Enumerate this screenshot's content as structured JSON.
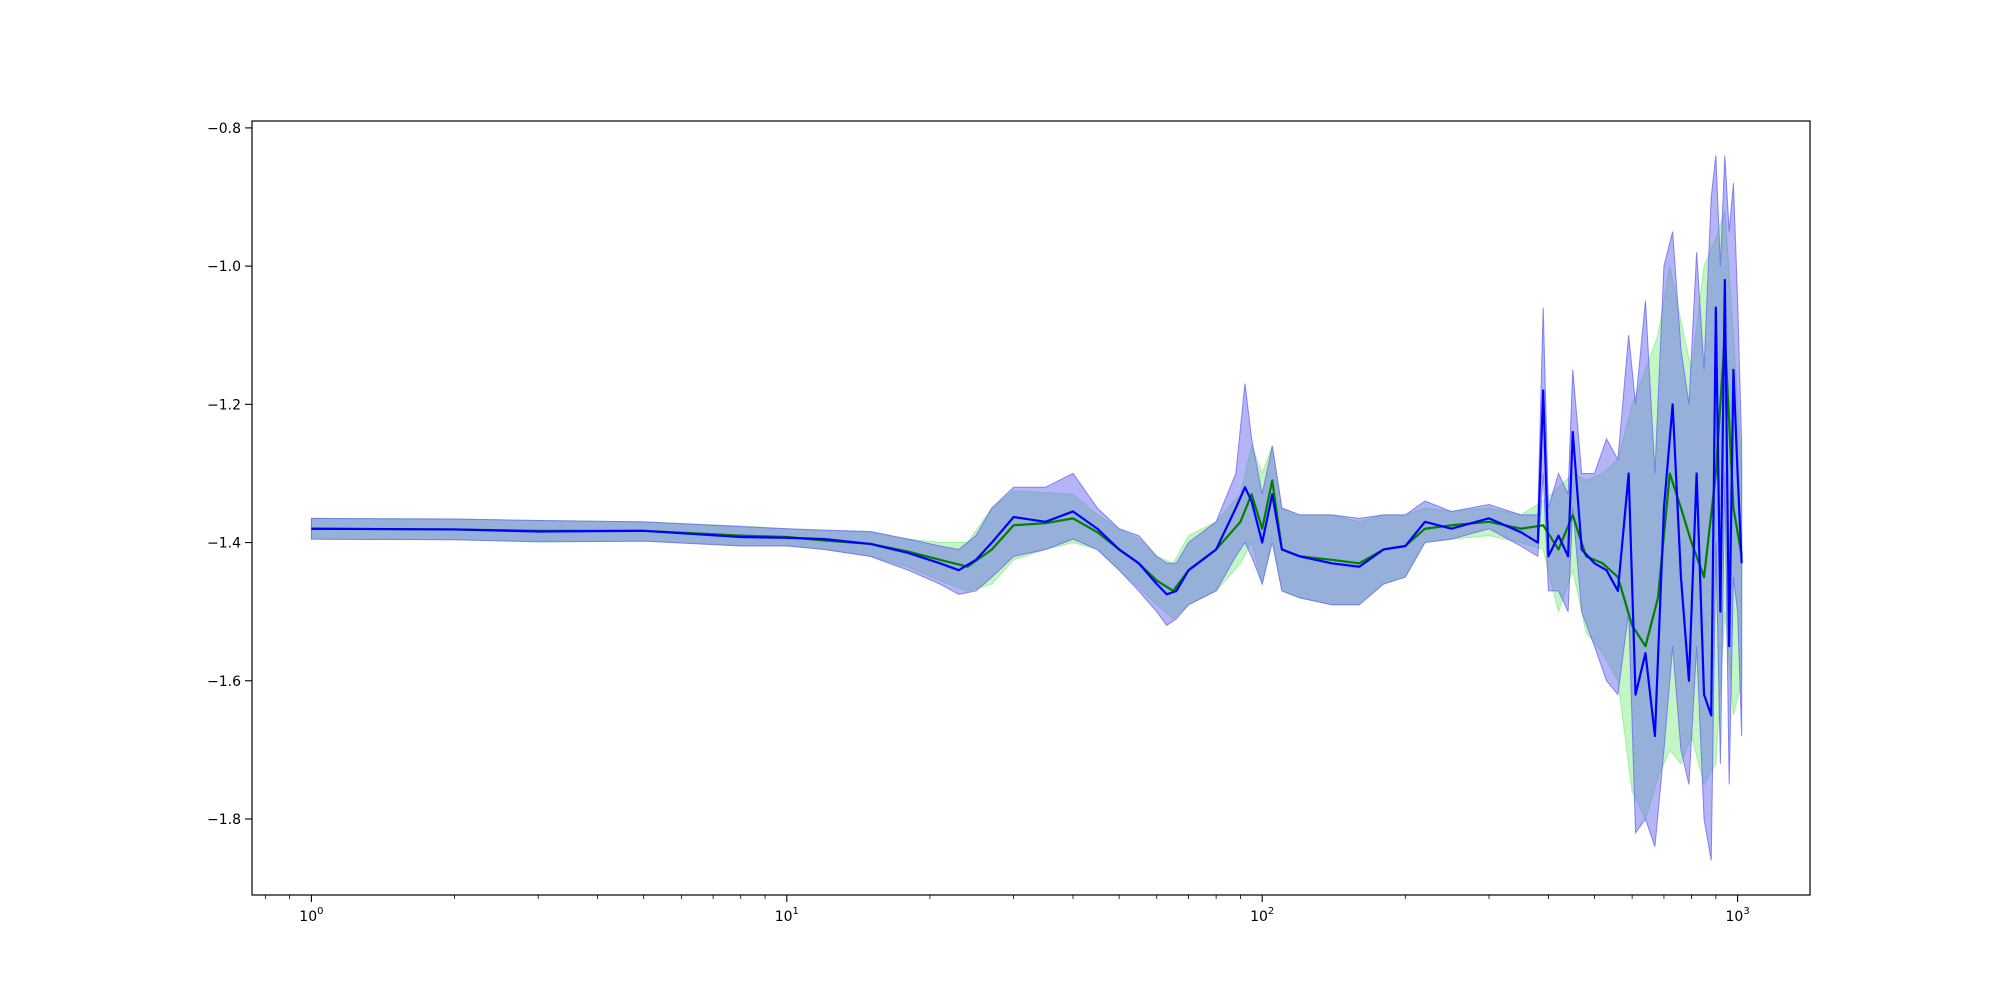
{
  "chart_data": {
    "type": "line",
    "title": "",
    "xlabel": "",
    "ylabel": "",
    "xscale": "log",
    "xlim": [
      0.75,
      1420
    ],
    "ylim": [
      -1.91,
      -0.79
    ],
    "grid": false,
    "legend": "none",
    "x_ticks": [
      {
        "base": "10",
        "exp": "0",
        "value": 1
      },
      {
        "base": "10",
        "exp": "1",
        "value": 10
      },
      {
        "base": "10",
        "exp": "2",
        "value": 100
      },
      {
        "base": "10",
        "exp": "3",
        "value": 1000
      }
    ],
    "y_ticks": [
      {
        "label": "−0.8",
        "value": -0.8
      },
      {
        "label": "−1.0",
        "value": -1.0
      },
      {
        "label": "−1.2",
        "value": -1.2
      },
      {
        "label": "−1.4",
        "value": -1.4
      },
      {
        "label": "−1.6",
        "value": -1.6
      },
      {
        "label": "−1.8",
        "value": -1.8
      }
    ],
    "series": [
      {
        "color": "#008000",
        "band_color": "#90ee90",
        "x": [
          1,
          2,
          3,
          5,
          8,
          10,
          12,
          15,
          18,
          21,
          24,
          27,
          30,
          35,
          40,
          45,
          50,
          55,
          60,
          65,
          70,
          80,
          90,
          95,
          100,
          105,
          110,
          120,
          140,
          160,
          180,
          200,
          220,
          250,
          300,
          350,
          390,
          420,
          450,
          480,
          520,
          560,
          600,
          640,
          680,
          720,
          760,
          800,
          850,
          900,
          940,
          980,
          1020
        ],
        "y": [
          -1.38,
          -1.381,
          -1.383,
          -1.383,
          -1.39,
          -1.392,
          -1.397,
          -1.402,
          -1.413,
          -1.425,
          -1.435,
          -1.41,
          -1.375,
          -1.372,
          -1.365,
          -1.385,
          -1.41,
          -1.43,
          -1.455,
          -1.47,
          -1.44,
          -1.41,
          -1.37,
          -1.33,
          -1.38,
          -1.31,
          -1.41,
          -1.42,
          -1.425,
          -1.43,
          -1.41,
          -1.405,
          -1.38,
          -1.375,
          -1.37,
          -1.38,
          -1.375,
          -1.41,
          -1.36,
          -1.42,
          -1.43,
          -1.45,
          -1.52,
          -1.55,
          -1.48,
          -1.3,
          -1.35,
          -1.4,
          -1.45,
          -1.3,
          -1.1,
          -1.35,
          -1.42
        ],
        "upper": [
          -1.365,
          -1.366,
          -1.368,
          -1.37,
          -1.376,
          -1.38,
          -1.383,
          -1.385,
          -1.395,
          -1.4,
          -1.4,
          -1.35,
          -1.325,
          -1.328,
          -1.33,
          -1.36,
          -1.38,
          -1.395,
          -1.42,
          -1.43,
          -1.39,
          -1.37,
          -1.33,
          -1.26,
          -1.3,
          -1.26,
          -1.35,
          -1.36,
          -1.36,
          -1.37,
          -1.36,
          -1.36,
          -1.35,
          -1.355,
          -1.35,
          -1.36,
          -1.34,
          -1.32,
          -1.3,
          -1.31,
          -1.3,
          -1.28,
          -1.2,
          -1.15,
          -1.1,
          -1.0,
          -1.08,
          -1.15,
          -1.0,
          -0.96,
          -0.92,
          -1.1,
          -1.3
        ],
        "lower": [
          -1.395,
          -1.396,
          -1.398,
          -1.398,
          -1.404,
          -1.404,
          -1.41,
          -1.42,
          -1.435,
          -1.455,
          -1.47,
          -1.46,
          -1.425,
          -1.41,
          -1.4,
          -1.41,
          -1.44,
          -1.465,
          -1.49,
          -1.51,
          -1.49,
          -1.47,
          -1.43,
          -1.4,
          -1.46,
          -1.39,
          -1.47,
          -1.48,
          -1.49,
          -1.49,
          -1.46,
          -1.45,
          -1.4,
          -1.395,
          -1.39,
          -1.4,
          -1.41,
          -1.5,
          -1.44,
          -1.53,
          -1.56,
          -1.6,
          -1.76,
          -1.8,
          -1.74,
          -1.7,
          -1.72,
          -1.68,
          -1.75,
          -1.72,
          -1.5,
          -1.65,
          -1.6
        ]
      },
      {
        "color": "#0000ff",
        "band_color": "#6a6af0",
        "x": [
          1,
          2,
          3,
          5,
          8,
          10,
          12,
          15,
          18,
          21,
          23,
          25,
          27,
          30,
          35,
          40,
          45,
          50,
          55,
          60,
          63,
          66,
          70,
          80,
          88,
          92,
          95,
          100,
          105,
          110,
          120,
          140,
          160,
          180,
          200,
          220,
          250,
          300,
          350,
          380,
          390,
          400,
          420,
          440,
          450,
          470,
          500,
          530,
          560,
          590,
          610,
          640,
          670,
          700,
          730,
          760,
          790,
          820,
          850,
          880,
          900,
          920,
          940,
          960,
          980,
          1000,
          1020
        ],
        "y": [
          -1.38,
          -1.381,
          -1.384,
          -1.383,
          -1.392,
          -1.393,
          -1.395,
          -1.402,
          -1.415,
          -1.43,
          -1.44,
          -1.425,
          -1.4,
          -1.363,
          -1.37,
          -1.355,
          -1.38,
          -1.41,
          -1.43,
          -1.46,
          -1.475,
          -1.47,
          -1.44,
          -1.41,
          -1.35,
          -1.32,
          -1.34,
          -1.4,
          -1.33,
          -1.41,
          -1.42,
          -1.43,
          -1.435,
          -1.41,
          -1.405,
          -1.37,
          -1.38,
          -1.365,
          -1.385,
          -1.4,
          -1.18,
          -1.42,
          -1.39,
          -1.42,
          -1.24,
          -1.41,
          -1.43,
          -1.44,
          -1.47,
          -1.3,
          -1.62,
          -1.56,
          -1.68,
          -1.35,
          -1.2,
          -1.45,
          -1.6,
          -1.3,
          -1.62,
          -1.65,
          -1.06,
          -1.5,
          -1.02,
          -1.55,
          -1.15,
          -1.3,
          -1.43
        ],
        "upper": [
          -1.365,
          -1.366,
          -1.368,
          -1.37,
          -1.377,
          -1.38,
          -1.382,
          -1.384,
          -1.395,
          -1.405,
          -1.41,
          -1.39,
          -1.35,
          -1.32,
          -1.32,
          -1.3,
          -1.35,
          -1.38,
          -1.39,
          -1.42,
          -1.43,
          -1.43,
          -1.4,
          -1.37,
          -1.3,
          -1.17,
          -1.25,
          -1.33,
          -1.26,
          -1.35,
          -1.36,
          -1.36,
          -1.365,
          -1.36,
          -1.36,
          -1.34,
          -1.355,
          -1.345,
          -1.36,
          -1.36,
          -1.06,
          -1.35,
          -1.3,
          -1.33,
          -1.15,
          -1.3,
          -1.3,
          -1.25,
          -1.28,
          -1.1,
          -1.2,
          -1.05,
          -1.3,
          -1.0,
          -0.95,
          -1.12,
          -1.2,
          -0.98,
          -1.15,
          -0.9,
          -0.84,
          -1.0,
          -0.84,
          -0.95,
          -0.88,
          -1.05,
          -1.26
        ],
        "lower": [
          -1.395,
          -1.396,
          -1.399,
          -1.398,
          -1.405,
          -1.405,
          -1.41,
          -1.42,
          -1.44,
          -1.46,
          -1.475,
          -1.47,
          -1.45,
          -1.42,
          -1.41,
          -1.395,
          -1.41,
          -1.44,
          -1.47,
          -1.5,
          -1.52,
          -1.51,
          -1.49,
          -1.47,
          -1.42,
          -1.4,
          -1.42,
          -1.46,
          -1.4,
          -1.47,
          -1.48,
          -1.49,
          -1.49,
          -1.46,
          -1.45,
          -1.4,
          -1.395,
          -1.38,
          -1.405,
          -1.42,
          -1.3,
          -1.47,
          -1.47,
          -1.5,
          -1.35,
          -1.5,
          -1.55,
          -1.6,
          -1.62,
          -1.5,
          -1.82,
          -1.8,
          -1.84,
          -1.7,
          -1.55,
          -1.7,
          -1.75,
          -1.55,
          -1.8,
          -1.86,
          -1.4,
          -1.72,
          -1.3,
          -1.75,
          -1.45,
          -1.5,
          -1.68
        ]
      }
    ]
  }
}
